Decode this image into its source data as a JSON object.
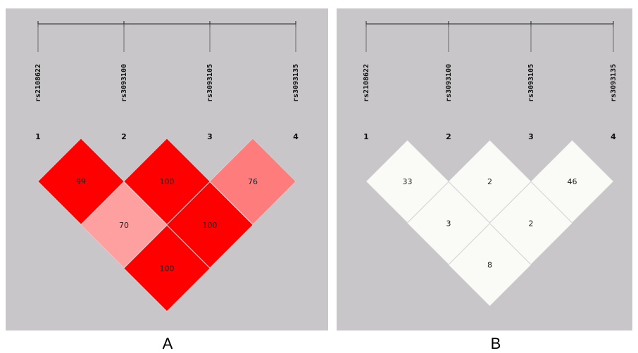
{
  "colors": {
    "background": "#c8c6c9",
    "ruler": "#222222",
    "cell_border": "#d8d8d8",
    "strong_ld": "#ff0000",
    "medium_ld": "#ff7c7c",
    "weak_ld": "#ffa0a0",
    "r2_cell": "#fafaf7"
  },
  "snps": [
    "rs2108622",
    "rs3093100",
    "rs3093105",
    "rs3093135"
  ],
  "marker_numbers": [
    "1",
    "2",
    "3",
    "4"
  ],
  "panels": [
    {
      "id": "a",
      "label": "A",
      "cells": [
        {
          "pair": [
            1,
            2
          ],
          "value": "99",
          "color": "#ff0000"
        },
        {
          "pair": [
            2,
            3
          ],
          "value": "100",
          "color": "#ff0000"
        },
        {
          "pair": [
            3,
            4
          ],
          "value": "76",
          "color": "#ff7c7c"
        },
        {
          "pair": [
            1,
            3
          ],
          "value": "70",
          "color": "#ffa0a0"
        },
        {
          "pair": [
            2,
            4
          ],
          "value": "100",
          "color": "#ff0000"
        },
        {
          "pair": [
            1,
            4
          ],
          "value": "100",
          "color": "#ff0000"
        }
      ]
    },
    {
      "id": "b",
      "label": "B",
      "cells": [
        {
          "pair": [
            1,
            2
          ],
          "value": "33",
          "color": "#fafaf7"
        },
        {
          "pair": [
            2,
            3
          ],
          "value": "2",
          "color": "#fafaf7"
        },
        {
          "pair": [
            3,
            4
          ],
          "value": "46",
          "color": "#fafaf7"
        },
        {
          "pair": [
            1,
            3
          ],
          "value": "3",
          "color": "#fafaf7"
        },
        {
          "pair": [
            2,
            4
          ],
          "value": "2",
          "color": "#fafaf7"
        },
        {
          "pair": [
            1,
            4
          ],
          "value": "8",
          "color": "#fafaf7"
        }
      ]
    }
  ]
}
